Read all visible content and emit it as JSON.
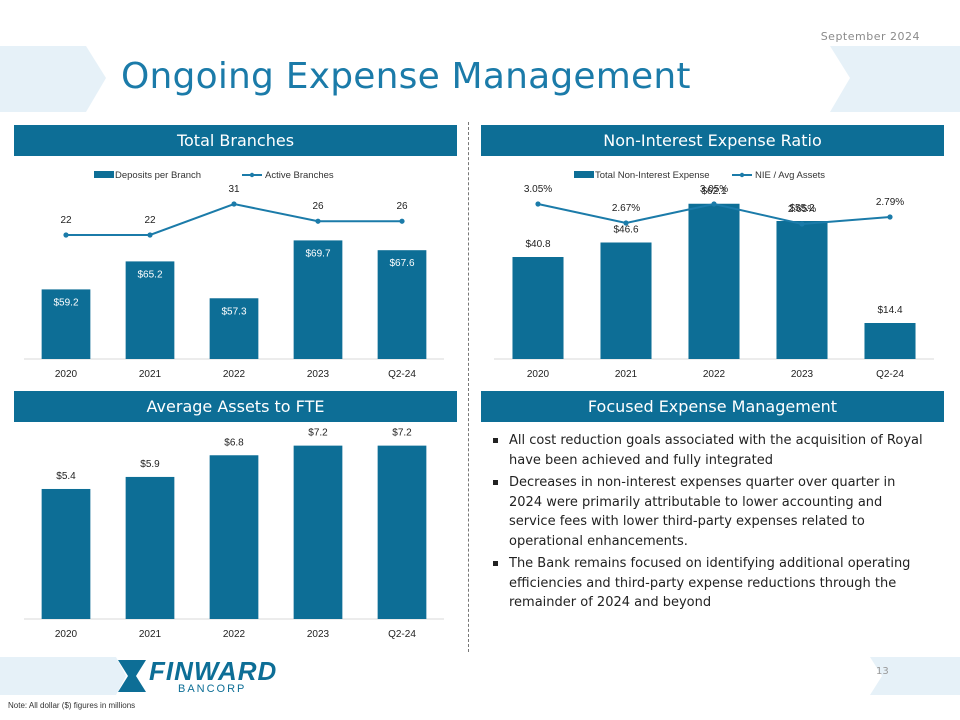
{
  "header": {
    "date": "September  2024",
    "title": "Ongoing Expense Management"
  },
  "panels": {
    "total_branches": "Total Branches",
    "nie_ratio": "Non-Interest Expense Ratio",
    "avg_assets": "Average Assets to FTE",
    "focused": "Focused Expense Management"
  },
  "bullets": [
    "All cost reduction goals associated with the acquisition of Royal have been achieved and fully integrated",
    "Decreases in non-interest expenses quarter over quarter in 2024 were primarily attributable to lower accounting and service fees with lower third-party expenses related to operational enhancements.",
    "The Bank remains focused on identifying additional operating efficiencies and third-party expense reductions through the remainder of 2024 and beyond"
  ],
  "footer": {
    "logo_name": "FINWARD",
    "logo_sub": "BANCORP",
    "note": "Note: All dollar ($) figures in millions",
    "page": "13"
  },
  "colors": {
    "bar": "#0D6E96",
    "accent": "#1B7BA9",
    "light": "#E6F1F8"
  },
  "chart_data": [
    {
      "type": "bar",
      "title": "Total Branches",
      "categories": [
        "2020",
        "2021",
        "2022",
        "2023",
        "Q2-24"
      ],
      "series": [
        {
          "name": "Deposits per Branch",
          "kind": "bar",
          "values": [
            59.2,
            65.2,
            57.3,
            69.7,
            67.6
          ],
          "labels": [
            "$59.2",
            "$65.2",
            "$57.3",
            "$69.7",
            "$67.6"
          ]
        },
        {
          "name": "Active Branches",
          "kind": "line",
          "values": [
            22,
            22,
            31,
            26,
            26
          ],
          "labels": [
            "22",
            "22",
            "31",
            "26",
            "26"
          ]
        }
      ]
    },
    {
      "type": "bar",
      "title": "Non-Interest Expense Ratio",
      "categories": [
        "2020",
        "2021",
        "2022",
        "2023",
        "Q2-24"
      ],
      "series": [
        {
          "name": "Total Non-Interest Expense",
          "kind": "bar",
          "values": [
            40.8,
            46.6,
            62.1,
            55.2,
            14.4
          ],
          "labels": [
            "$40.8",
            "$46.6",
            "$62.1",
            "$55.2",
            "$14.4"
          ]
        },
        {
          "name": "NIE / Avg Assets",
          "kind": "line",
          "values": [
            3.05,
            2.67,
            3.05,
            2.65,
            2.79
          ],
          "labels": [
            "3.05%",
            "2.67%",
            "3.05%",
            "2.65%",
            "2.79%"
          ]
        }
      ]
    },
    {
      "type": "bar",
      "title": "Average Assets to FTE",
      "categories": [
        "2020",
        "2021",
        "2022",
        "2023",
        "Q2-24"
      ],
      "series": [
        {
          "name": "Average Assets to FTE",
          "kind": "bar",
          "values": [
            5.4,
            5.9,
            6.8,
            7.2,
            7.2
          ],
          "labels": [
            "$5.4",
            "$5.9",
            "$6.8",
            "$7.2",
            "$7.2"
          ]
        }
      ]
    }
  ]
}
